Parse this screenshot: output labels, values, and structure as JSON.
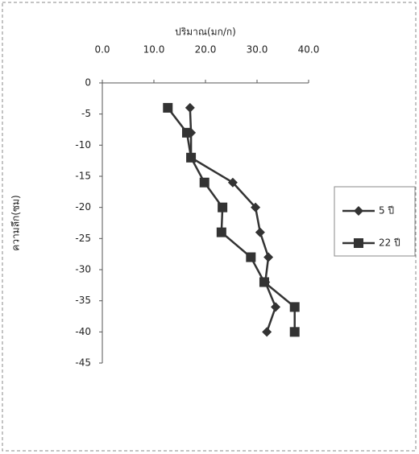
{
  "chart_data": {
    "type": "line",
    "orientation": "vertical",
    "x_label": "ปริมาณ(มก/ก)",
    "y_label": "ความลึก(ซม)",
    "depths": [
      -4,
      -8,
      -12,
      -16,
      -20,
      -24,
      -28,
      -32,
      -36,
      -40
    ],
    "series": [
      {
        "name": "5 ปี",
        "color": "#333333",
        "marker": "diamond",
        "values": [
          17.0,
          17.2,
          17.2,
          25.3,
          29.7,
          30.6,
          32.2,
          31.6,
          33.6,
          31.9
        ]
      },
      {
        "name": "22 ปี",
        "color": "#333333",
        "marker": "square",
        "values": [
          12.7,
          16.4,
          17.2,
          19.8,
          23.3,
          23.1,
          28.8,
          31.4,
          37.3,
          37.3
        ]
      }
    ],
    "xlim": [
      0,
      40
    ],
    "xticks": [
      {
        "value": 0,
        "label": "0.0"
      },
      {
        "value": 10,
        "label": "10.0"
      },
      {
        "value": 20,
        "label": "20.0"
      },
      {
        "value": 30,
        "label": "30.0"
      },
      {
        "value": 40,
        "label": "40.0"
      }
    ],
    "ylim": [
      -45,
      0
    ],
    "yticks": [
      0,
      -5,
      -10,
      -15,
      -20,
      -25,
      -30,
      -35,
      -40,
      -45
    ],
    "legend": "right"
  }
}
